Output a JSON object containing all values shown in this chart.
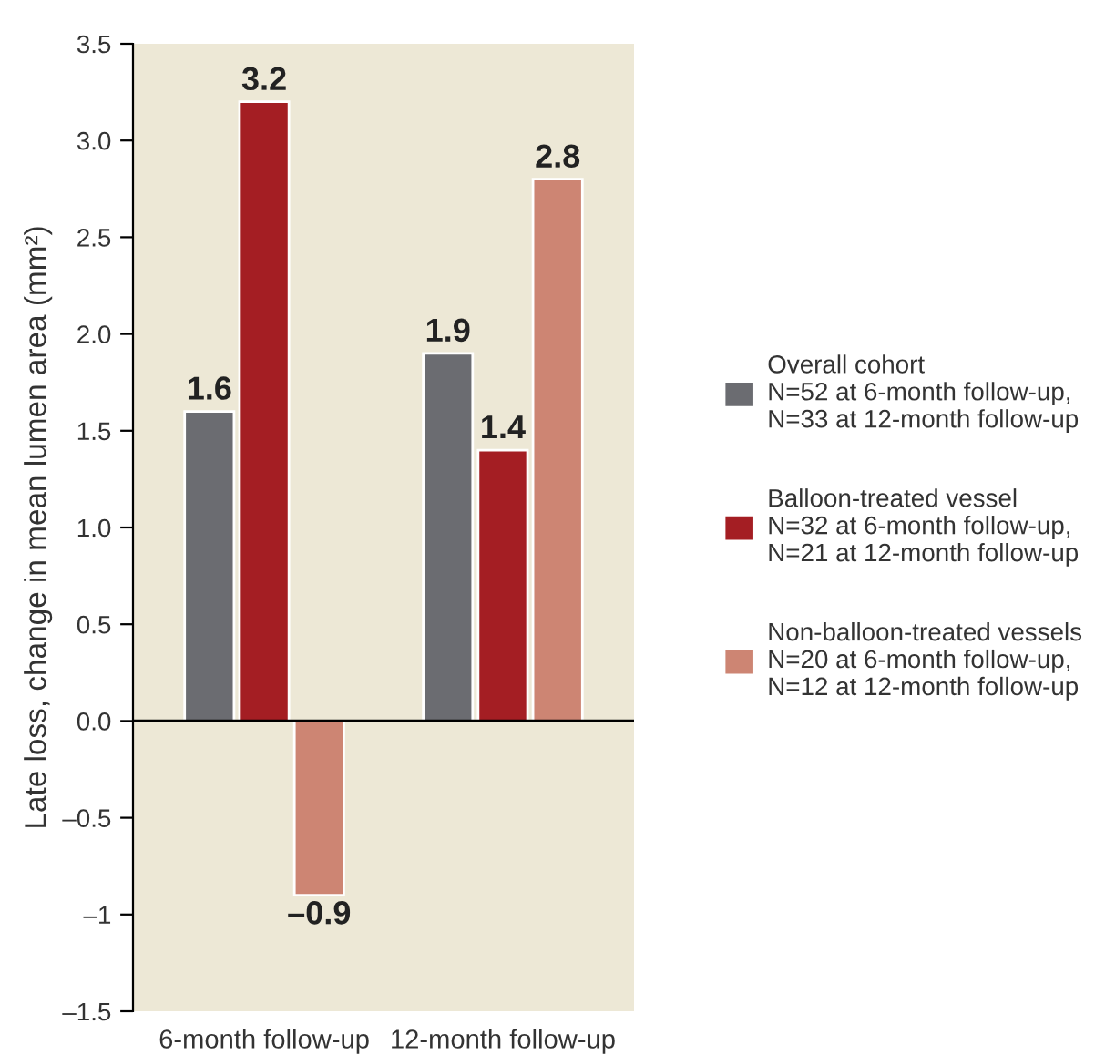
{
  "chart_data": {
    "type": "bar",
    "ylabel": "Late loss, change in mean lumen area (mm²)",
    "categories": [
      "6-month follow-up",
      "12-month follow-up"
    ],
    "series": [
      {
        "name": "Overall cohort\nN=52 at 6-month follow-up,\nN=33 at 12-month follow-up",
        "color": "#6b6c71",
        "values": [
          1.6,
          1.9
        ],
        "value_labels": [
          "1.6",
          "1.9"
        ]
      },
      {
        "name": "Balloon-treated vessel\nN=32 at 6-month follow-up,\nN=21 at 12-month follow-up",
        "color": "#a41e23",
        "values": [
          3.2,
          1.4
        ],
        "value_labels": [
          "3.2",
          "1.4"
        ]
      },
      {
        "name": "Non-balloon-treated vessels\nN=20 at 6-month follow-up,\nN=12 at 12-month follow-up",
        "color": "#cd8573",
        "values": [
          -0.9,
          2.8
        ],
        "value_labels": [
          "–0.9",
          "2.8"
        ]
      }
    ],
    "ylim": [
      -1.5,
      3.5
    ],
    "yticks": [
      {
        "value": -1.5,
        "label": "–1.5"
      },
      {
        "value": -1,
        "label": "–1"
      },
      {
        "value": -0.5,
        "label": "–0.5"
      },
      {
        "value": 0,
        "label": "0.0"
      },
      {
        "value": 0.5,
        "label": "0.5"
      },
      {
        "value": 1,
        "label": "1.0"
      },
      {
        "value": 1.5,
        "label": "1.5"
      },
      {
        "value": 2,
        "label": "2.0"
      },
      {
        "value": 2.5,
        "label": "2.5"
      },
      {
        "value": 3,
        "label": "3.0"
      },
      {
        "value": 3.5,
        "label": "3.5"
      }
    ],
    "ref_lines": [
      {
        "axis": "y",
        "value": 0,
        "color": "#000000"
      }
    ],
    "grid": false,
    "legend": "right"
  }
}
